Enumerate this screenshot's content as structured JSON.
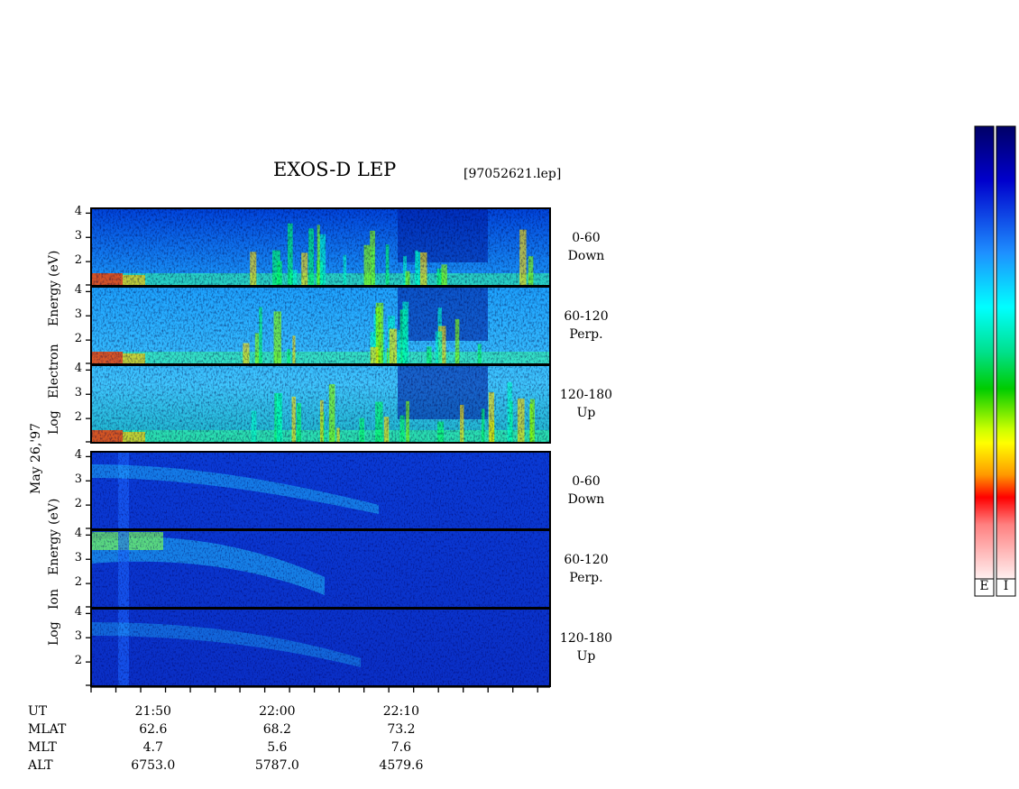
{
  "chart_data": {
    "type": "heatmap",
    "title": "EXOS-D LEP",
    "file": "[97052621.lep]",
    "date_label": "May 26,'97",
    "electron_ylabel": [
      "Log",
      "Electron",
      "Energy",
      "(eV)"
    ],
    "ion_ylabel": [
      "Log",
      "Ion",
      "Energy",
      "(eV)"
    ],
    "y_ticks": [
      "4",
      "3",
      "2"
    ],
    "y_range": [
      1,
      4.2
    ],
    "panels": [
      {
        "species": "Electron",
        "pitch_angle": "0-60",
        "direction": "Down"
      },
      {
        "species": "Electron",
        "pitch_angle": "60-120",
        "direction": "Perp."
      },
      {
        "species": "Electron",
        "pitch_angle": "120-180",
        "direction": "Up"
      },
      {
        "species": "Ion",
        "pitch_angle": "0-60",
        "direction": "Down"
      },
      {
        "species": "Ion",
        "pitch_angle": "60-120",
        "direction": "Perp."
      },
      {
        "species": "Ion",
        "pitch_angle": "120-180",
        "direction": "Up"
      }
    ],
    "x_axis": {
      "rows": [
        "UT",
        "MLAT",
        "MLT",
        "ALT"
      ],
      "ticks": [
        {
          "UT": "21:50",
          "MLAT": "62.6",
          "MLT": "4.7",
          "ALT": "6753.0"
        },
        {
          "UT": "22:00",
          "MLAT": "68.2",
          "MLT": "5.6",
          "ALT": "5787.0"
        },
        {
          "UT": "22:10",
          "MLAT": "73.2",
          "MLT": "7.6",
          "ALT": "4579.6"
        }
      ],
      "ut_range_minutes": [
        "21:45",
        "22:22"
      ]
    },
    "colorbars": [
      {
        "label": "E"
      },
      {
        "label": "I"
      }
    ],
    "colormap": [
      "#ffffff",
      "#ff0000",
      "#ffff00",
      "#00dd00",
      "#00ffff",
      "#0000cc",
      "#000066"
    ]
  }
}
